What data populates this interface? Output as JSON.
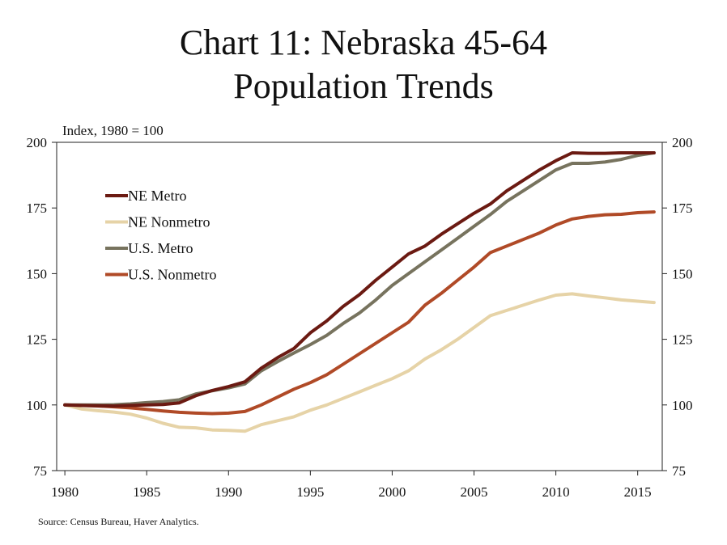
{
  "title_lines": [
    "Chart 11: Nebraska 45-64",
    "Population Trends"
  ],
  "units_label": "Index, 1980 = 100",
  "source": "Source: Census Bureau, Haver Analytics.",
  "chart_data": {
    "type": "line",
    "title": "Chart 11: Nebraska 45-64 Population Trends",
    "ylabel": "Index, 1980 = 100",
    "xlabel": "",
    "xlim": [
      1979.5,
      2016.5
    ],
    "ylim": [
      75,
      200
    ],
    "x_ticks": [
      1980,
      1985,
      1990,
      1995,
      2000,
      2005,
      2010,
      2015
    ],
    "y_ticks": [
      75,
      100,
      125,
      150,
      175,
      200
    ],
    "dual_y_axis": true,
    "grid": false,
    "legend_position": "upper-left",
    "x": [
      1980,
      1981,
      1982,
      1983,
      1984,
      1985,
      1986,
      1987,
      1988,
      1989,
      1990,
      1991,
      1992,
      1993,
      1994,
      1995,
      1996,
      1997,
      1998,
      1999,
      2000,
      2001,
      2002,
      2003,
      2004,
      2005,
      2006,
      2007,
      2008,
      2009,
      2010,
      2011,
      2012,
      2013,
      2014,
      2015,
      2016
    ],
    "series": [
      {
        "name": "NE Metro",
        "color": "#6b1a12",
        "values": [
          100,
          99.8,
          99.7,
          99.6,
          99.8,
          100.0,
          100.2,
          100.8,
          103.5,
          105.5,
          107.0,
          108.8,
          114.0,
          118.0,
          121.5,
          127.5,
          132.0,
          137.5,
          142.0,
          147.5,
          152.5,
          157.5,
          160.5,
          165.0,
          169.0,
          173.0,
          176.5,
          181.5,
          185.5,
          189.5,
          193.0,
          196.0,
          195.8,
          195.8,
          196.0,
          196.0,
          196.0
        ]
      },
      {
        "name": "NE Nonmetro",
        "color": "#e6d3a7",
        "values": [
          100,
          98.5,
          97.8,
          97.3,
          96.5,
          95.0,
          93.0,
          91.5,
          91.3,
          90.5,
          90.3,
          90.0,
          92.5,
          94.0,
          95.5,
          98.0,
          100.0,
          102.5,
          105.0,
          107.5,
          110.0,
          113.0,
          117.5,
          121.0,
          125.0,
          129.5,
          134.0,
          136.0,
          138.0,
          140.0,
          141.8,
          142.3,
          141.5,
          140.8,
          140.0,
          139.5,
          139.0
        ]
      },
      {
        "name": "U.S. Metro",
        "color": "#77735e",
        "values": [
          100,
          100.0,
          100.0,
          100.1,
          100.4,
          100.9,
          101.3,
          102.0,
          104.2,
          105.4,
          106.5,
          108.0,
          113.0,
          116.5,
          119.8,
          123.0,
          126.5,
          131.0,
          135.0,
          140.0,
          145.5,
          150.0,
          154.5,
          159.0,
          163.5,
          168.0,
          172.5,
          177.5,
          181.5,
          185.5,
          189.5,
          192.0,
          192.0,
          192.5,
          193.5,
          195.0,
          196.0
        ]
      },
      {
        "name": "U.S. Nonmetro",
        "color": "#b04a27",
        "values": [
          100,
          99.8,
          99.6,
          99.3,
          98.9,
          98.3,
          97.7,
          97.2,
          96.9,
          96.7,
          96.9,
          97.5,
          100.0,
          103.0,
          106.0,
          108.5,
          111.5,
          115.5,
          119.5,
          123.5,
          127.5,
          131.5,
          138.0,
          142.5,
          147.5,
          152.5,
          158.0,
          160.5,
          163.0,
          165.5,
          168.5,
          170.8,
          171.8,
          172.4,
          172.6,
          173.2,
          173.5
        ]
      }
    ]
  }
}
